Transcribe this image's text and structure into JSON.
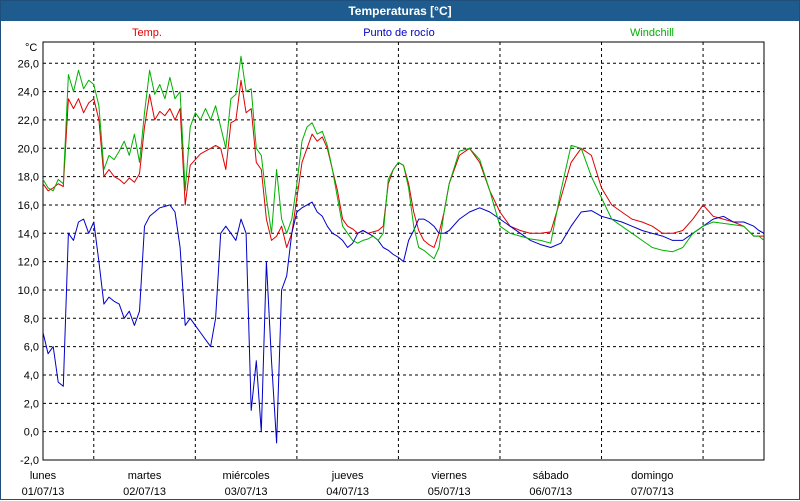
{
  "window": {
    "title": "Temperaturas [°C]"
  },
  "chart_data": {
    "type": "line",
    "title": "Temperaturas [°C]",
    "ylabel": "°C",
    "ylim": [
      -2,
      27.5
    ],
    "xlim": [
      0,
      7.1
    ],
    "y_ticks": [
      "26,0",
      "24,0",
      "22,0",
      "20,0",
      "18,0",
      "16,0",
      "14,0",
      "12,0",
      "10,0",
      "8,0",
      "6,0",
      "4,0",
      "2,0",
      "0,0",
      "-2,0"
    ],
    "y_tick_values": [
      26,
      24,
      22,
      20,
      18,
      16,
      14,
      12,
      10,
      8,
      6,
      4,
      2,
      0,
      -2
    ],
    "x_ticks": [
      {
        "day": "lunes",
        "date": "01/07/13",
        "value": 0
      },
      {
        "day": "martes",
        "date": "02/07/13",
        "value": 1
      },
      {
        "day": "miércoles",
        "date": "03/07/13",
        "value": 2
      },
      {
        "day": "jueves",
        "date": "04/07/13",
        "value": 3
      },
      {
        "day": "viernes",
        "date": "05/07/13",
        "value": 4
      },
      {
        "day": "sábado",
        "date": "06/07/13",
        "value": 5
      },
      {
        "day": "domingo",
        "date": "07/07/13",
        "value": 6
      }
    ],
    "grid": true,
    "series": [
      {
        "name": "Temp.",
        "color": "#e00000",
        "x": [
          0,
          0.05,
          0.1,
          0.15,
          0.2,
          0.25,
          0.3,
          0.35,
          0.4,
          0.45,
          0.5,
          0.55,
          0.6,
          0.65,
          0.7,
          0.75,
          0.8,
          0.85,
          0.9,
          0.95,
          1,
          1.05,
          1.1,
          1.15,
          1.2,
          1.25,
          1.3,
          1.35,
          1.4,
          1.45,
          1.5,
          1.55,
          1.6,
          1.65,
          1.7,
          1.75,
          1.8,
          1.85,
          1.9,
          1.95,
          2,
          2.05,
          2.1,
          2.15,
          2.2,
          2.25,
          2.3,
          2.35,
          2.4,
          2.45,
          2.5,
          2.55,
          2.6,
          2.65,
          2.7,
          2.75,
          2.8,
          2.85,
          2.9,
          2.95,
          3,
          3.05,
          3.1,
          3.15,
          3.2,
          3.25,
          3.3,
          3.35,
          3.4,
          3.45,
          3.5,
          3.55,
          3.6,
          3.65,
          3.7,
          3.75,
          3.8,
          3.85,
          3.9,
          3.95,
          4,
          4.1,
          4.2,
          4.3,
          4.4,
          4.5,
          4.6,
          4.7,
          4.8,
          4.9,
          5,
          5.1,
          5.2,
          5.3,
          5.4,
          5.5,
          5.6,
          5.7,
          5.8,
          5.9,
          6,
          6.1,
          6.2,
          6.3,
          6.4,
          6.5,
          6.6,
          6.7,
          6.8,
          6.9,
          7.0,
          7.05,
          7.1
        ],
        "values": [
          17.5,
          17.0,
          17.2,
          17.5,
          17.3,
          23.5,
          22.8,
          23.5,
          22.5,
          23.2,
          23.5,
          22.0,
          18.0,
          18.5,
          18.0,
          17.8,
          17.5,
          17.9,
          17.6,
          18.2,
          21.5,
          23.8,
          22.0,
          22.6,
          22.3,
          22.8,
          22.0,
          22.8,
          16.0,
          18.8,
          19.2,
          19.6,
          19.8,
          20.0,
          20.2,
          20.0,
          18.5,
          21.8,
          22.0,
          24.8,
          22.5,
          22.8,
          19.0,
          18.5,
          15.0,
          13.5,
          13.8,
          14.5,
          13.0,
          14.0,
          16.5,
          19.0,
          20.0,
          21.0,
          20.5,
          20.8,
          20.0,
          18.5,
          17.0,
          15.0,
          14.5,
          14.3,
          14.0,
          14.2,
          14.0,
          14.1,
          14.2,
          14.5,
          17.5,
          18.5,
          19.0,
          18.8,
          17.5,
          15.5,
          14.2,
          13.5,
          13.2,
          13.0,
          14.0,
          15.5,
          17.5,
          19.5,
          20.0,
          19.0,
          17.0,
          15.5,
          14.5,
          14.2,
          14.0,
          14.0,
          14.1,
          16.5,
          19.0,
          20.0,
          19.5,
          17.2,
          16.0,
          15.5,
          15.0,
          14.8,
          14.5,
          14.0,
          14.0,
          14.2,
          15.0,
          16.0,
          15.2,
          15.0,
          14.8,
          14.5,
          13.8,
          13.8,
          13.8
        ]
      },
      {
        "name": "Punto de rocío",
        "color": "#0000c8",
        "x": [
          0,
          0.05,
          0.1,
          0.15,
          0.2,
          0.25,
          0.3,
          0.35,
          0.4,
          0.45,
          0.5,
          0.55,
          0.6,
          0.65,
          0.7,
          0.75,
          0.8,
          0.85,
          0.9,
          0.95,
          1,
          1.05,
          1.1,
          1.15,
          1.2,
          1.25,
          1.3,
          1.35,
          1.4,
          1.45,
          1.5,
          1.55,
          1.6,
          1.65,
          1.7,
          1.75,
          1.8,
          1.85,
          1.9,
          1.95,
          2,
          2.05,
          2.1,
          2.15,
          2.2,
          2.25,
          2.3,
          2.35,
          2.4,
          2.45,
          2.5,
          2.55,
          2.6,
          2.65,
          2.7,
          2.75,
          2.8,
          2.85,
          2.9,
          2.95,
          3,
          3.05,
          3.1,
          3.15,
          3.2,
          3.25,
          3.3,
          3.35,
          3.4,
          3.45,
          3.5,
          3.55,
          3.6,
          3.65,
          3.7,
          3.75,
          3.8,
          3.85,
          3.9,
          3.95,
          4,
          4.1,
          4.2,
          4.3,
          4.4,
          4.5,
          4.6,
          4.7,
          4.8,
          4.9,
          5,
          5.1,
          5.2,
          5.3,
          5.4,
          5.5,
          5.6,
          5.7,
          5.8,
          5.9,
          6,
          6.1,
          6.2,
          6.3,
          6.4,
          6.5,
          6.6,
          6.7,
          6.8,
          6.9,
          7.0,
          7.05,
          7.1
        ],
        "values": [
          7.0,
          5.5,
          6.0,
          3.5,
          3.2,
          14.0,
          13.5,
          14.8,
          15.0,
          14.0,
          14.8,
          12.0,
          9.0,
          9.5,
          9.2,
          9.0,
          8.0,
          8.5,
          7.5,
          8.5,
          14.5,
          15.2,
          15.5,
          15.8,
          15.9,
          16.0,
          15.5,
          13.0,
          7.5,
          8.0,
          7.5,
          7.0,
          6.5,
          6.0,
          8.0,
          14.0,
          14.5,
          14.0,
          13.5,
          15.0,
          14.0,
          1.5,
          5.0,
          0.0,
          12.0,
          5.0,
          -0.8,
          10.0,
          11.0,
          14.0,
          15.5,
          15.8,
          16.0,
          16.2,
          15.5,
          15.2,
          14.5,
          14.0,
          13.8,
          13.5,
          13.0,
          13.3,
          14.0,
          14.2,
          14.0,
          13.8,
          13.5,
          13.0,
          12.8,
          12.5,
          12.3,
          12.0,
          13.5,
          14.2,
          15.0,
          15.0,
          14.8,
          14.5,
          14.0,
          14.0,
          14.2,
          15.0,
          15.5,
          15.8,
          15.5,
          15.0,
          14.5,
          14.0,
          13.5,
          13.2,
          13.0,
          13.3,
          14.5,
          15.5,
          15.6,
          15.2,
          15.0,
          14.8,
          14.5,
          14.2,
          14.0,
          13.8,
          13.5,
          13.5,
          14.0,
          14.5,
          15.0,
          15.2,
          14.8,
          14.8,
          14.5,
          14.2,
          14.0
        ]
      },
      {
        "name": "Windchill",
        "color": "#00b000",
        "x": [
          0,
          0.05,
          0.1,
          0.15,
          0.2,
          0.25,
          0.3,
          0.35,
          0.4,
          0.45,
          0.5,
          0.55,
          0.6,
          0.65,
          0.7,
          0.75,
          0.8,
          0.85,
          0.9,
          0.95,
          1,
          1.05,
          1.1,
          1.15,
          1.2,
          1.25,
          1.3,
          1.35,
          1.4,
          1.45,
          1.5,
          1.55,
          1.6,
          1.65,
          1.7,
          1.75,
          1.8,
          1.85,
          1.9,
          1.95,
          2,
          2.05,
          2.1,
          2.15,
          2.2,
          2.25,
          2.3,
          2.35,
          2.4,
          2.45,
          2.5,
          2.55,
          2.6,
          2.65,
          2.7,
          2.75,
          2.8,
          2.85,
          2.9,
          2.95,
          3,
          3.05,
          3.1,
          3.15,
          3.2,
          3.25,
          3.3,
          3.35,
          3.4,
          3.45,
          3.5,
          3.55,
          3.6,
          3.65,
          3.7,
          3.75,
          3.8,
          3.85,
          3.9,
          3.95,
          4,
          4.1,
          4.2,
          4.3,
          4.4,
          4.5,
          4.6,
          4.7,
          4.8,
          4.9,
          5,
          5.1,
          5.2,
          5.3,
          5.4,
          5.5,
          5.6,
          5.7,
          5.8,
          5.9,
          6,
          6.1,
          6.2,
          6.3,
          6.4,
          6.5,
          6.6,
          6.7,
          6.8,
          6.9,
          7.0,
          7.05,
          7.1
        ],
        "values": [
          17.8,
          17.2,
          17.0,
          17.8,
          17.5,
          25.2,
          24.0,
          25.5,
          24.2,
          24.8,
          24.5,
          23.0,
          18.5,
          19.5,
          19.2,
          19.8,
          20.5,
          19.5,
          21.0,
          19.0,
          22.5,
          25.5,
          23.8,
          24.5,
          23.5,
          25.0,
          23.5,
          24.0,
          17.0,
          21.5,
          22.5,
          22.0,
          22.8,
          22.0,
          23.0,
          21.5,
          20.0,
          23.5,
          23.8,
          26.5,
          24.0,
          24.2,
          20.0,
          19.5,
          16.5,
          14.0,
          18.5,
          15.0,
          14.0,
          15.0,
          17.5,
          20.5,
          21.5,
          21.8,
          21.0,
          21.2,
          20.2,
          18.5,
          16.5,
          14.5,
          14.0,
          13.5,
          13.3,
          13.5,
          13.6,
          13.8,
          13.5,
          14.0,
          17.8,
          18.5,
          19.0,
          18.8,
          17.2,
          14.5,
          13.0,
          12.8,
          12.5,
          12.2,
          13.0,
          15.5,
          17.5,
          19.8,
          20.0,
          19.2,
          17.0,
          14.5,
          14.0,
          13.8,
          13.6,
          13.5,
          13.3,
          17.0,
          20.2,
          20.0,
          18.0,
          16.5,
          15.0,
          14.5,
          14.0,
          13.5,
          13.0,
          12.8,
          12.7,
          13.0,
          14.0,
          14.5,
          14.8,
          14.7,
          14.6,
          14.5,
          13.8,
          13.8,
          13.5
        ]
      }
    ]
  }
}
